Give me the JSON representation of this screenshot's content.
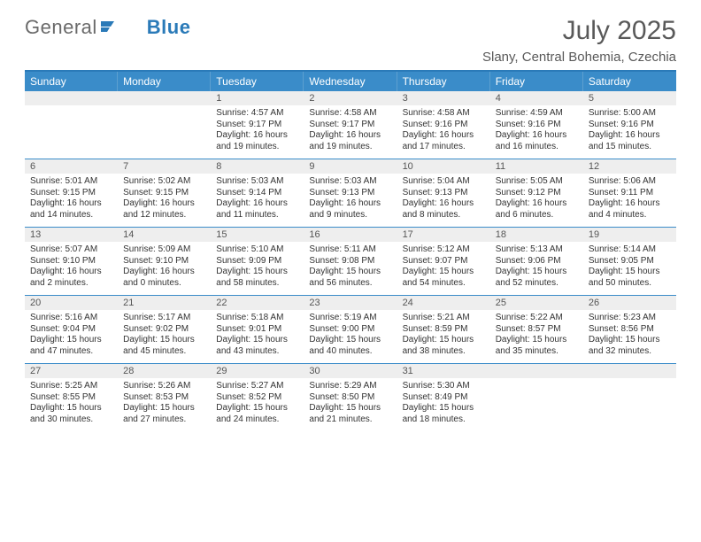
{
  "brand": {
    "text1": "General",
    "text2": "Blue"
  },
  "title": "July 2025",
  "location": "Slany, Central Bohemia, Czechia",
  "colors": {
    "header_bg": "#3a8cc9",
    "header_text": "#ffffff",
    "rule": "#2a7ab8",
    "daynum_bg": "#eeeeee",
    "text_muted": "#595959"
  },
  "typography": {
    "title_fontsize": 30,
    "location_fontsize": 15,
    "dow_fontsize": 12,
    "daynum_fontsize": 11,
    "body_fontsize": 10
  },
  "days_of_week": [
    "Sunday",
    "Monday",
    "Tuesday",
    "Wednesday",
    "Thursday",
    "Friday",
    "Saturday"
  ],
  "weeks": [
    [
      {
        "n": "",
        "lines": []
      },
      {
        "n": "",
        "lines": []
      },
      {
        "n": "1",
        "lines": [
          "Sunrise: 4:57 AM",
          "Sunset: 9:17 PM",
          "Daylight: 16 hours",
          "and 19 minutes."
        ]
      },
      {
        "n": "2",
        "lines": [
          "Sunrise: 4:58 AM",
          "Sunset: 9:17 PM",
          "Daylight: 16 hours",
          "and 19 minutes."
        ]
      },
      {
        "n": "3",
        "lines": [
          "Sunrise: 4:58 AM",
          "Sunset: 9:16 PM",
          "Daylight: 16 hours",
          "and 17 minutes."
        ]
      },
      {
        "n": "4",
        "lines": [
          "Sunrise: 4:59 AM",
          "Sunset: 9:16 PM",
          "Daylight: 16 hours",
          "and 16 minutes."
        ]
      },
      {
        "n": "5",
        "lines": [
          "Sunrise: 5:00 AM",
          "Sunset: 9:16 PM",
          "Daylight: 16 hours",
          "and 15 minutes."
        ]
      }
    ],
    [
      {
        "n": "6",
        "lines": [
          "Sunrise: 5:01 AM",
          "Sunset: 9:15 PM",
          "Daylight: 16 hours",
          "and 14 minutes."
        ]
      },
      {
        "n": "7",
        "lines": [
          "Sunrise: 5:02 AM",
          "Sunset: 9:15 PM",
          "Daylight: 16 hours",
          "and 12 minutes."
        ]
      },
      {
        "n": "8",
        "lines": [
          "Sunrise: 5:03 AM",
          "Sunset: 9:14 PM",
          "Daylight: 16 hours",
          "and 11 minutes."
        ]
      },
      {
        "n": "9",
        "lines": [
          "Sunrise: 5:03 AM",
          "Sunset: 9:13 PM",
          "Daylight: 16 hours",
          "and 9 minutes."
        ]
      },
      {
        "n": "10",
        "lines": [
          "Sunrise: 5:04 AM",
          "Sunset: 9:13 PM",
          "Daylight: 16 hours",
          "and 8 minutes."
        ]
      },
      {
        "n": "11",
        "lines": [
          "Sunrise: 5:05 AM",
          "Sunset: 9:12 PM",
          "Daylight: 16 hours",
          "and 6 minutes."
        ]
      },
      {
        "n": "12",
        "lines": [
          "Sunrise: 5:06 AM",
          "Sunset: 9:11 PM",
          "Daylight: 16 hours",
          "and 4 minutes."
        ]
      }
    ],
    [
      {
        "n": "13",
        "lines": [
          "Sunrise: 5:07 AM",
          "Sunset: 9:10 PM",
          "Daylight: 16 hours",
          "and 2 minutes."
        ]
      },
      {
        "n": "14",
        "lines": [
          "Sunrise: 5:09 AM",
          "Sunset: 9:10 PM",
          "Daylight: 16 hours",
          "and 0 minutes."
        ]
      },
      {
        "n": "15",
        "lines": [
          "Sunrise: 5:10 AM",
          "Sunset: 9:09 PM",
          "Daylight: 15 hours",
          "and 58 minutes."
        ]
      },
      {
        "n": "16",
        "lines": [
          "Sunrise: 5:11 AM",
          "Sunset: 9:08 PM",
          "Daylight: 15 hours",
          "and 56 minutes."
        ]
      },
      {
        "n": "17",
        "lines": [
          "Sunrise: 5:12 AM",
          "Sunset: 9:07 PM",
          "Daylight: 15 hours",
          "and 54 minutes."
        ]
      },
      {
        "n": "18",
        "lines": [
          "Sunrise: 5:13 AM",
          "Sunset: 9:06 PM",
          "Daylight: 15 hours",
          "and 52 minutes."
        ]
      },
      {
        "n": "19",
        "lines": [
          "Sunrise: 5:14 AM",
          "Sunset: 9:05 PM",
          "Daylight: 15 hours",
          "and 50 minutes."
        ]
      }
    ],
    [
      {
        "n": "20",
        "lines": [
          "Sunrise: 5:16 AM",
          "Sunset: 9:04 PM",
          "Daylight: 15 hours",
          "and 47 minutes."
        ]
      },
      {
        "n": "21",
        "lines": [
          "Sunrise: 5:17 AM",
          "Sunset: 9:02 PM",
          "Daylight: 15 hours",
          "and 45 minutes."
        ]
      },
      {
        "n": "22",
        "lines": [
          "Sunrise: 5:18 AM",
          "Sunset: 9:01 PM",
          "Daylight: 15 hours",
          "and 43 minutes."
        ]
      },
      {
        "n": "23",
        "lines": [
          "Sunrise: 5:19 AM",
          "Sunset: 9:00 PM",
          "Daylight: 15 hours",
          "and 40 minutes."
        ]
      },
      {
        "n": "24",
        "lines": [
          "Sunrise: 5:21 AM",
          "Sunset: 8:59 PM",
          "Daylight: 15 hours",
          "and 38 minutes."
        ]
      },
      {
        "n": "25",
        "lines": [
          "Sunrise: 5:22 AM",
          "Sunset: 8:57 PM",
          "Daylight: 15 hours",
          "and 35 minutes."
        ]
      },
      {
        "n": "26",
        "lines": [
          "Sunrise: 5:23 AM",
          "Sunset: 8:56 PM",
          "Daylight: 15 hours",
          "and 32 minutes."
        ]
      }
    ],
    [
      {
        "n": "27",
        "lines": [
          "Sunrise: 5:25 AM",
          "Sunset: 8:55 PM",
          "Daylight: 15 hours",
          "and 30 minutes."
        ]
      },
      {
        "n": "28",
        "lines": [
          "Sunrise: 5:26 AM",
          "Sunset: 8:53 PM",
          "Daylight: 15 hours",
          "and 27 minutes."
        ]
      },
      {
        "n": "29",
        "lines": [
          "Sunrise: 5:27 AM",
          "Sunset: 8:52 PM",
          "Daylight: 15 hours",
          "and 24 minutes."
        ]
      },
      {
        "n": "30",
        "lines": [
          "Sunrise: 5:29 AM",
          "Sunset: 8:50 PM",
          "Daylight: 15 hours",
          "and 21 minutes."
        ]
      },
      {
        "n": "31",
        "lines": [
          "Sunrise: 5:30 AM",
          "Sunset: 8:49 PM",
          "Daylight: 15 hours",
          "and 18 minutes."
        ]
      },
      {
        "n": "",
        "lines": []
      },
      {
        "n": "",
        "lines": []
      }
    ]
  ]
}
